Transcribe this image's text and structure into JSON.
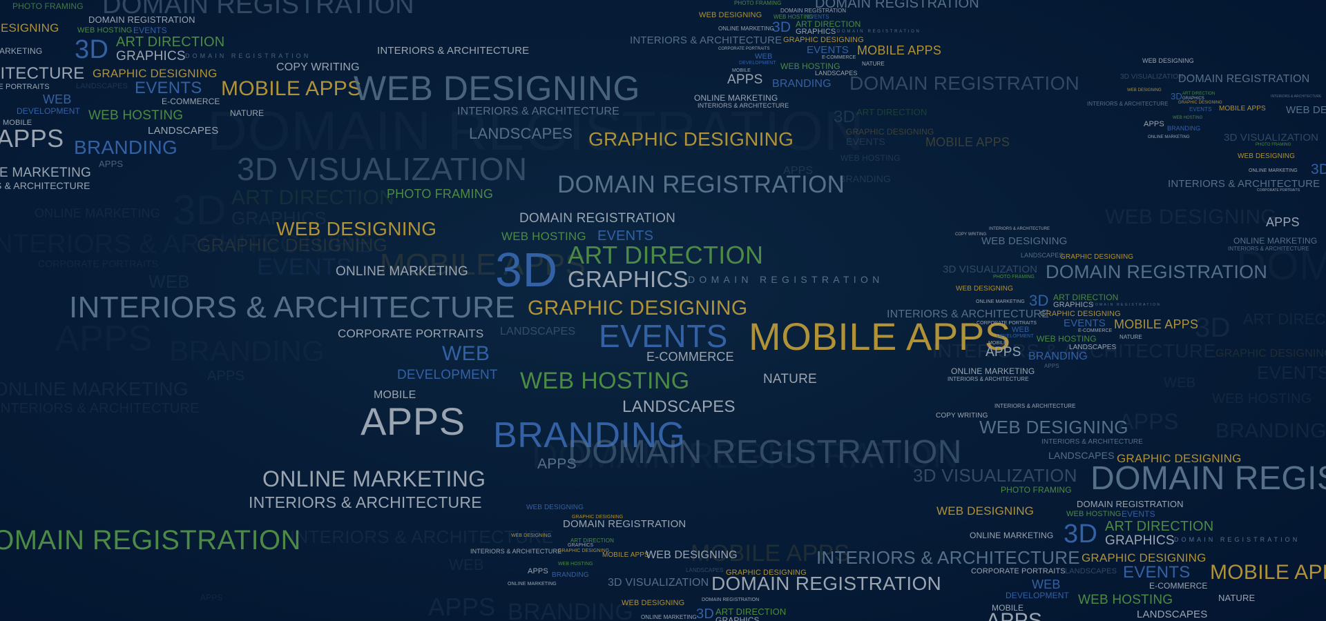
{
  "terms": {
    "domain_registration": "DOMAIN REGISTRATION",
    "web_designing": "WEB DESIGNING",
    "mobile_apps": "MOBILE APPS",
    "interiors_architecture": "INTERIORS & ARCHITECTURE",
    "graphic_designing": "GRAPHIC DESIGNING",
    "visualization_3d": "3D VISUALIZATION",
    "art_direction": "ART DIRECTION",
    "three_d": "3D",
    "graphics": "GRAPHICS",
    "events": "EVENTS",
    "e_commerce": "E-COMMERCE",
    "web": "WEB",
    "development": "DEVELOPMENT",
    "web_hosting": "WEB HOSTING",
    "landscapes": "LANDSCAPES",
    "branding": "BRANDING",
    "apps": "APPS",
    "mobile": "MOBILE",
    "online_marketing": "ONLINE MARKETING",
    "corporate_portraits": "CORPORATE PORTRAITS",
    "photo_framing": "PHOTO FRAMING",
    "copy_writing": "COPY WRITING",
    "nature": "NATURE"
  },
  "colors": {
    "background": "#04162e",
    "gray": "#9aa5b1",
    "gold": "#b09238",
    "green": "#4d8a46",
    "blue": "#3460a4",
    "slate": "#56708a"
  }
}
